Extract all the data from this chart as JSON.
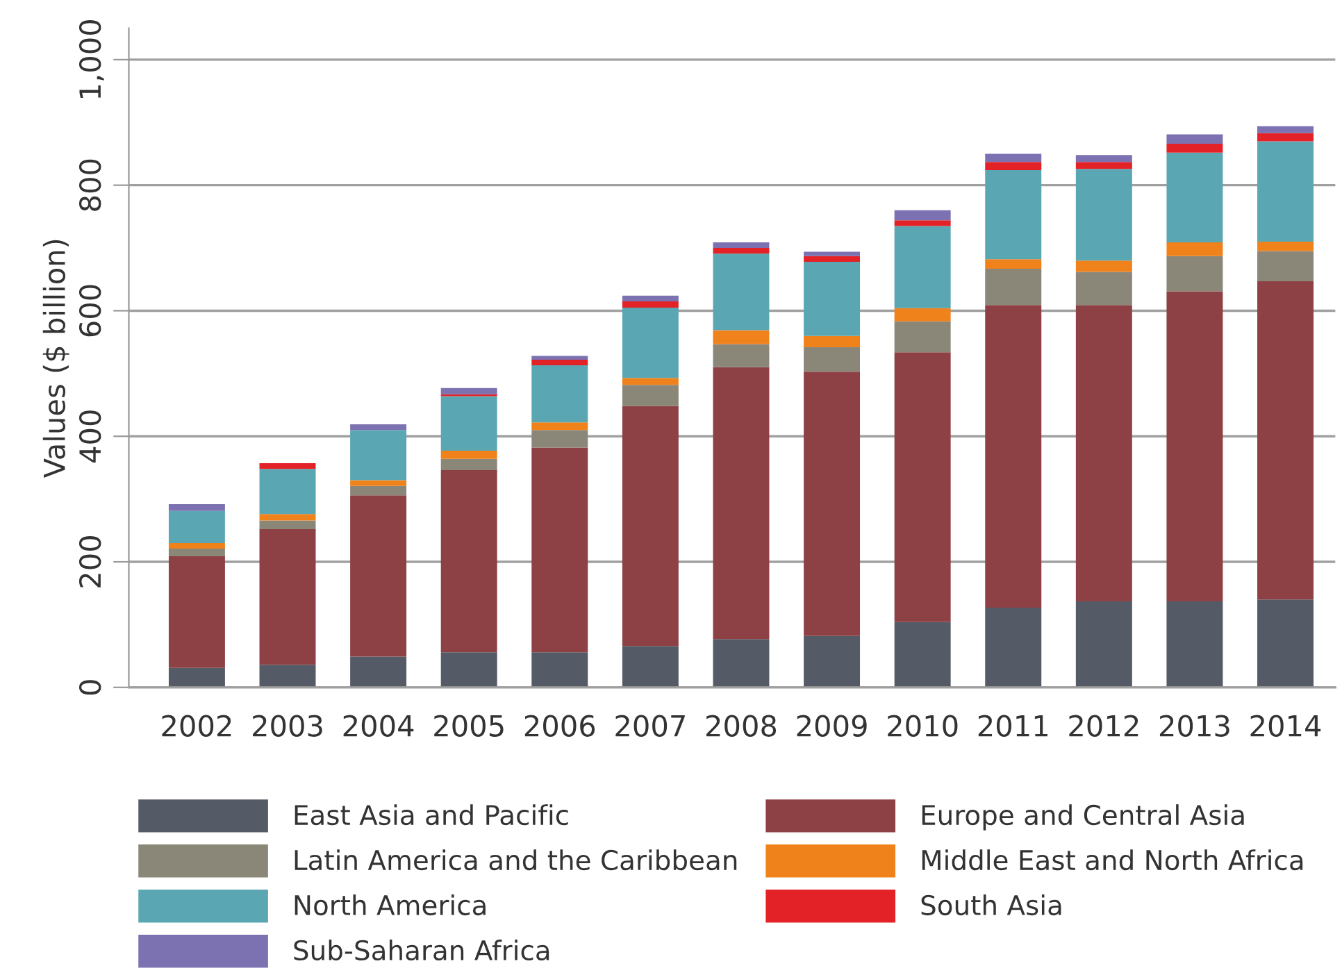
{
  "chart_data": {
    "type": "bar",
    "stacked": true,
    "ylabel": "Values ($ billion)",
    "categories": [
      "2002",
      "2003",
      "2004",
      "2005",
      "2006",
      "2007",
      "2008",
      "2009",
      "2010",
      "2011",
      "2012",
      "2013",
      "2014"
    ],
    "series": [
      {
        "name": "East Asia and Pacific",
        "color": "#555b66",
        "values": [
          31,
          36,
          49,
          56,
          56,
          66,
          77,
          82,
          104,
          127,
          137,
          137,
          140
        ]
      },
      {
        "name": "Europe and Central Asia",
        "color": "#8e4145",
        "values": [
          178,
          216,
          257,
          290,
          326,
          382,
          433,
          421,
          430,
          482,
          472,
          494,
          507
        ]
      },
      {
        "name": "Latin America and the Caribbean",
        "color": "#8b8778",
        "values": [
          12,
          14,
          15,
          18,
          28,
          34,
          37,
          39,
          49,
          58,
          53,
          56,
          48
        ]
      },
      {
        "name": "Middle East and North Africa",
        "color": "#f0821c",
        "values": [
          9,
          10,
          9,
          13,
          12,
          11,
          22,
          18,
          21,
          15,
          18,
          22,
          15
        ]
      },
      {
        "name": "North America",
        "color": "#5aa7b3",
        "values": [
          51,
          72,
          80,
          87,
          91,
          112,
          122,
          118,
          131,
          142,
          146,
          143,
          160
        ]
      },
      {
        "name": "South Asia",
        "color": "#e32227",
        "values": [
          0,
          9,
          0,
          3,
          9,
          10,
          9,
          9,
          9,
          13,
          11,
          14,
          13
        ]
      },
      {
        "name": "Sub-Saharan Africa",
        "color": "#7d72b1",
        "values": [
          11,
          0,
          9,
          10,
          6,
          9,
          9,
          7,
          16,
          13,
          11,
          15,
          11
        ]
      }
    ],
    "ylim": [
      0,
      1050
    ],
    "yticks": [
      0,
      200,
      400,
      600,
      800,
      {
        "value": 1000,
        "label": "1,000"
      }
    ],
    "grid": "y",
    "legend": "bottom"
  }
}
